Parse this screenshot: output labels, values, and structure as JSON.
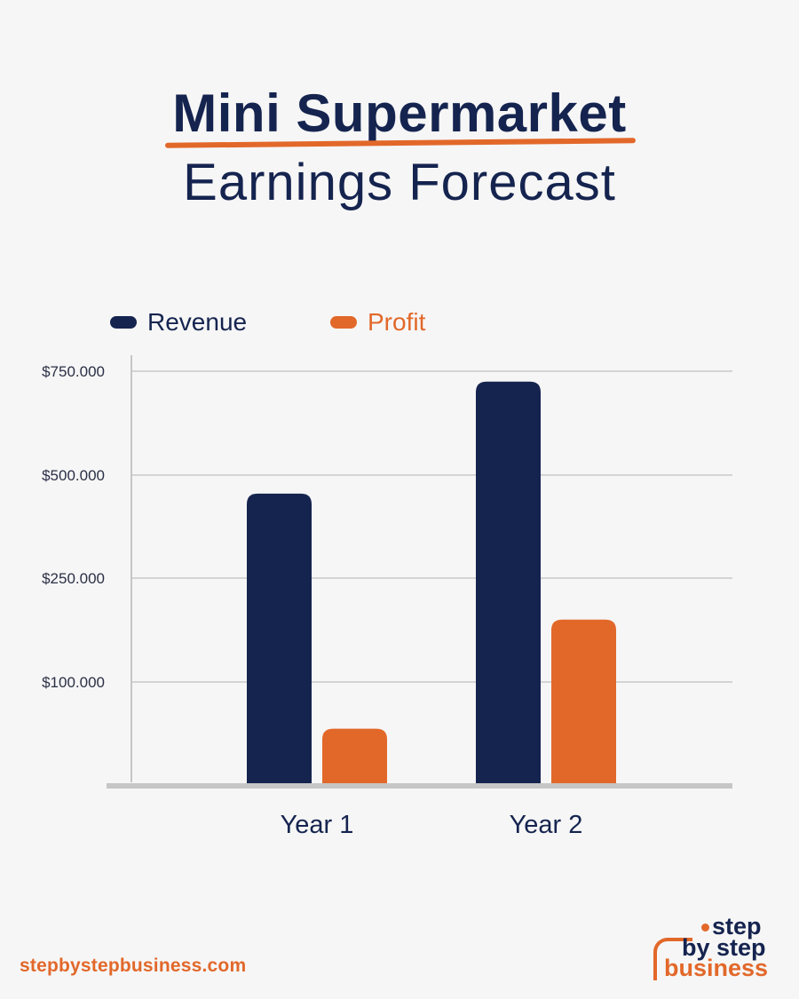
{
  "header": {
    "title_line1": "Mini Supermarket",
    "title_line2": "Earnings Forecast"
  },
  "colors": {
    "revenue": "#15244f",
    "profit": "#e2682a",
    "grid": "#d4d4d4",
    "axis": "#c6c6c6",
    "text_dark": "#15244f"
  },
  "chart_data": {
    "type": "bar",
    "categories": [
      "Year 1",
      "Year 2"
    ],
    "series": [
      {
        "name": "Revenue",
        "values": [
          455000,
          725000
        ]
      },
      {
        "name": "Profit",
        "values": [
          55000,
          190000
        ]
      }
    ],
    "y_ticks": [
      100000,
      250000,
      500000,
      750000
    ],
    "y_tick_labels": [
      "$100.000",
      "$250.000",
      "$500.000",
      "$750.000"
    ],
    "ylim": [
      0,
      750000
    ],
    "grid": true,
    "legend_position": "top-left",
    "xlabel": "",
    "ylabel": ""
  },
  "footer": {
    "url": "stepbystepbusiness.com",
    "logo_word1": "step",
    "logo_word2": "by step",
    "logo_word3": "business"
  }
}
